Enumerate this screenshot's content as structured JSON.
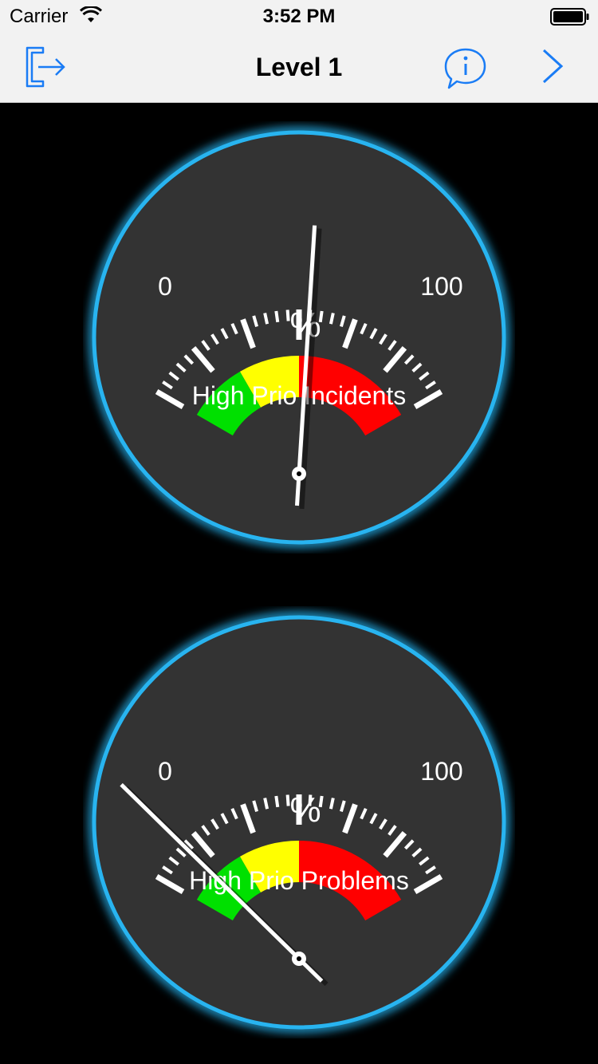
{
  "status_bar": {
    "carrier": "Carrier",
    "time": "3:52 PM"
  },
  "nav": {
    "title": "Level 1",
    "icons": [
      "logout-icon",
      "info-icon",
      "chevron-right-icon"
    ]
  },
  "colors": {
    "accent": "#1a7cf5",
    "gauge_face": "#333333",
    "gauge_glow": "#28b4f0",
    "band_green": "#00e000",
    "band_yellow": "#ffff00",
    "band_red": "#ff0000",
    "needle": "#ffffff"
  },
  "gauges": [
    {
      "label": "High Prio Incidents",
      "unit": "%",
      "min_label": "0",
      "max_label": "100",
      "min": 0,
      "max": 100,
      "value": 53,
      "bands": [
        {
          "color": "green",
          "from": 0,
          "to": 25
        },
        {
          "color": "yellow",
          "from": 25,
          "to": 50
        },
        {
          "color": "red",
          "from": 50,
          "to": 100
        }
      ]
    },
    {
      "label": "High Prio Problems",
      "unit": "%",
      "min_label": "0",
      "max_label": "100",
      "min": 0,
      "max": 100,
      "value": 12,
      "bands": [
        {
          "color": "green",
          "from": 0,
          "to": 25
        },
        {
          "color": "yellow",
          "from": 25,
          "to": 50
        },
        {
          "color": "red",
          "from": 50,
          "to": 100
        }
      ]
    }
  ]
}
